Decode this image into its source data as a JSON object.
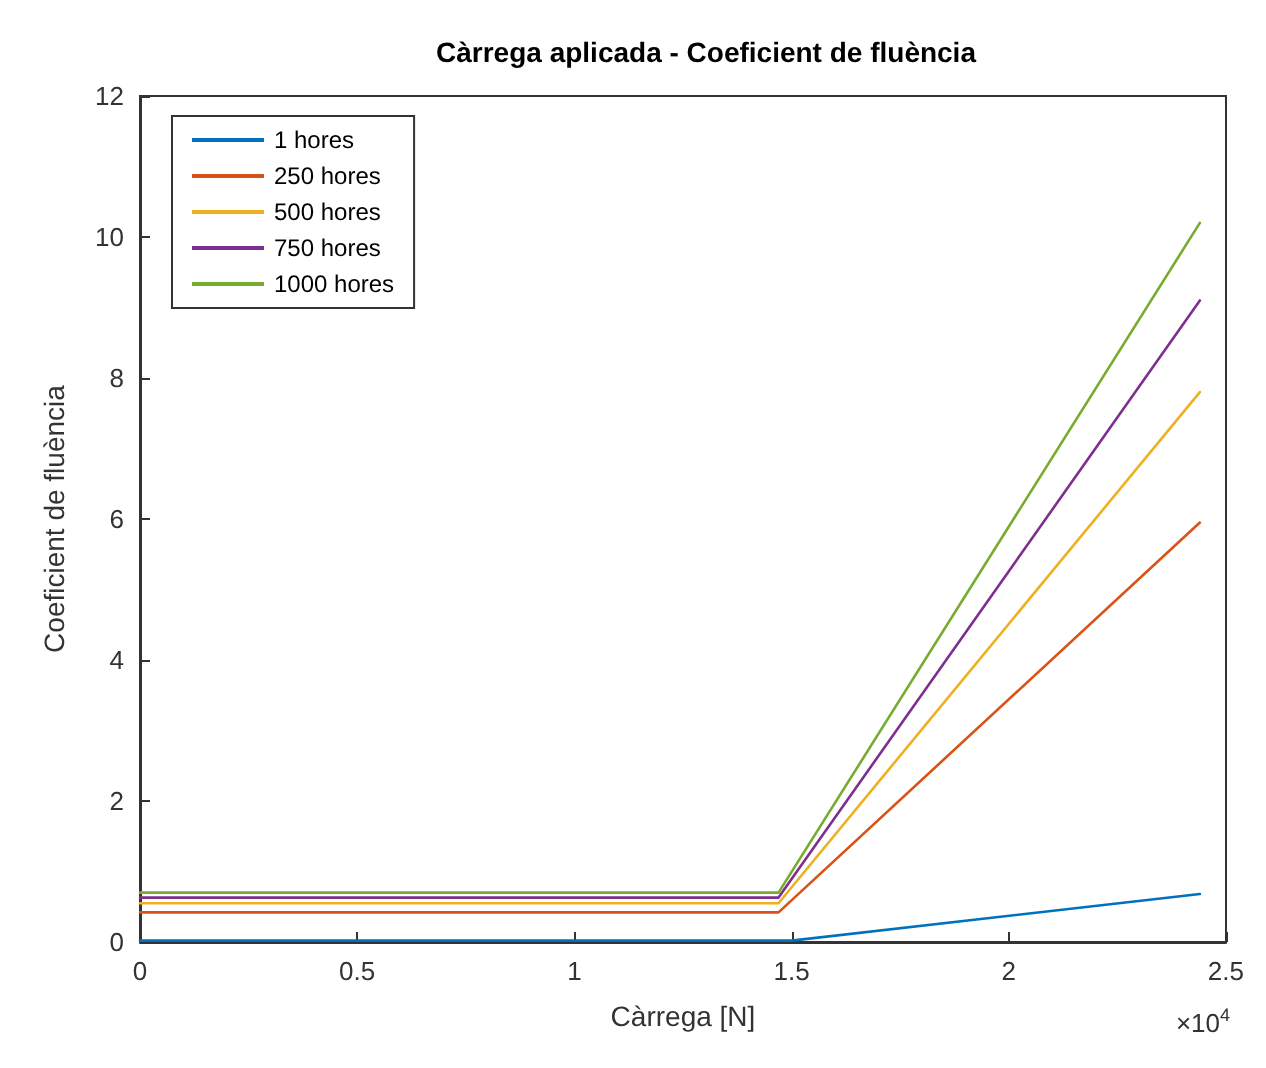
{
  "chart_data": {
    "type": "line",
    "title": "Càrrega aplicada - Coeficient de fluència",
    "xlabel": "Càrrega [N]",
    "ylabel": "Coeficient de fluència",
    "x": [
      0,
      1.47,
      2.44
    ],
    "series": [
      {
        "name": "1 hores",
        "color": "#0072bd",
        "values": [
          0.02,
          0.02,
          0.68
        ],
        "x": [
          0,
          1.5,
          2.44
        ]
      },
      {
        "name": "250 hores",
        "color": "#d95319",
        "values": [
          0.42,
          0.42,
          5.95
        ]
      },
      {
        "name": "500 hores",
        "color": "#edb120",
        "values": [
          0.55,
          0.55,
          7.8
        ]
      },
      {
        "name": "750 hores",
        "color": "#7e2f8e",
        "values": [
          0.63,
          0.63,
          9.1
        ]
      },
      {
        "name": "1000 hores",
        "color": "#77ac30",
        "values": [
          0.7,
          0.7,
          10.2
        ]
      }
    ],
    "xlim": [
      0,
      2.5
    ],
    "xticks": [
      0,
      0.5,
      1,
      1.5,
      2,
      2.5
    ],
    "ylim": [
      0,
      12
    ],
    "yticks": [
      0,
      2,
      4,
      6,
      8,
      10,
      12
    ],
    "annotations": [
      "×10$^{4}$"
    ],
    "grid": false,
    "legend": "top left",
    "marker": "none",
    "line_style": "solid"
  }
}
